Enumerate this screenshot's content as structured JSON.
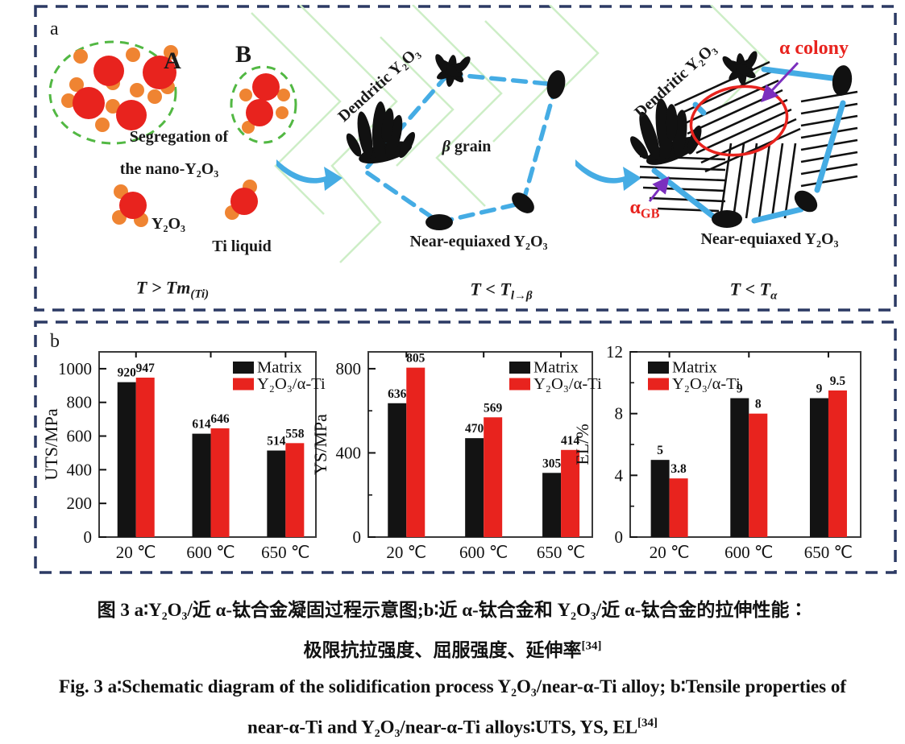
{
  "colors": {
    "border_navy": "#2c3a64",
    "particle_red": "#e8231e",
    "particle_orange": "#ef8432",
    "cluster_green": "#52b843",
    "sky_blue": "#45ace4",
    "annotation_purple": "#7b2fbe",
    "pattern_green": "#cdeec6",
    "bar_black": "#131313",
    "bar_red": "#e8231e"
  },
  "panel_a": {
    "label": "a",
    "stage1": {
      "cluster_a_label": "A",
      "cluster_b_label": "B",
      "segregation_line1": "Segregation of",
      "segregation_line2": "the  nano-Y₂O₃",
      "particle_label": "Y₂O₃",
      "liquid_label": "Ti liquid",
      "temp_base": "T > Tm",
      "temp_sub": "(Ti)"
    },
    "stage2": {
      "dendritic_label": "Dendritic Y₂O₃",
      "grain_symbol": "β",
      "grain_word": " grain",
      "equiaxed_label": "Near-equiaxed Y₂O₃",
      "temp_base": "T < T",
      "temp_sub": "l→β"
    },
    "stage3": {
      "dendritic_label": "Dendritic Y₂O₃",
      "colony_label": "α colony",
      "gb_base": "α",
      "gb_sub": "GB",
      "equiaxed_label": "Near-equiaxed Y₂O₃",
      "temp_base": "T < T",
      "temp_sub": "α"
    }
  },
  "panel_b": {
    "label": "b"
  },
  "chart_data": [
    {
      "type": "bar",
      "ylabel": "UTS/MPa",
      "categories": [
        "20 ℃",
        "600 ℃",
        "650 ℃"
      ],
      "series": [
        {
          "name": "Matrix",
          "color": "#131313",
          "values": [
            920,
            614,
            514
          ]
        },
        {
          "name": "Y₂O₃/α-Ti",
          "color": "#e8231e",
          "values": [
            947,
            646,
            558
          ]
        }
      ],
      "ylim": [
        0,
        1100
      ],
      "yticks": [
        0,
        200,
        400,
        600,
        800,
        1000
      ],
      "yticks_minor": [],
      "legend_position": "top-right",
      "grid": false
    },
    {
      "type": "bar",
      "ylabel": "YS/MPa",
      "categories": [
        "20 ℃",
        "600 ℃",
        "650 ℃"
      ],
      "series": [
        {
          "name": "Matrix",
          "color": "#131313",
          "values": [
            636,
            470,
            305
          ]
        },
        {
          "name": "Y₂O₃/α-Ti",
          "color": "#e8231e",
          "values": [
            805,
            569,
            414
          ]
        }
      ],
      "ylim": [
        0,
        880
      ],
      "yticks": [
        0,
        400,
        800
      ],
      "yticks_minor": [
        200,
        600
      ],
      "legend_position": "top-right",
      "grid": false
    },
    {
      "type": "bar",
      "ylabel": "EL/%",
      "categories": [
        "20 ℃",
        "600 ℃",
        "650 ℃"
      ],
      "series": [
        {
          "name": "Matrix",
          "color": "#131313",
          "values": [
            5,
            9,
            9
          ]
        },
        {
          "name": "Y₂O₃/α-Ti",
          "color": "#e8231e",
          "values": [
            3.8,
            8,
            9.5
          ]
        }
      ],
      "ylim": [
        0,
        12
      ],
      "yticks": [
        0,
        4,
        8,
        12
      ],
      "yticks_minor": [
        2,
        6,
        10
      ],
      "legend_position": "top-left",
      "grid": false
    }
  ],
  "caption": {
    "zh_line1": "图 3  a∶Y₂O₃/近 α-钛合金凝固过程示意图;b∶近 α-钛合金和 Y₂O₃/近 α-钛合金的拉伸性能∶",
    "zh_line2": "极限抗拉强度、屈服强度、延伸率",
    "zh_line2_sup": "[34]",
    "en_line1": "Fig. 3  a∶Schematic diagram of the solidification process Y₂O₃/near-α-Ti alloy; b∶Tensile properties of",
    "en_line2": "near-α-Ti and Y₂O₃/near-α-Ti alloys∶UTS, YS, EL",
    "en_line2_sup": "[34]"
  }
}
